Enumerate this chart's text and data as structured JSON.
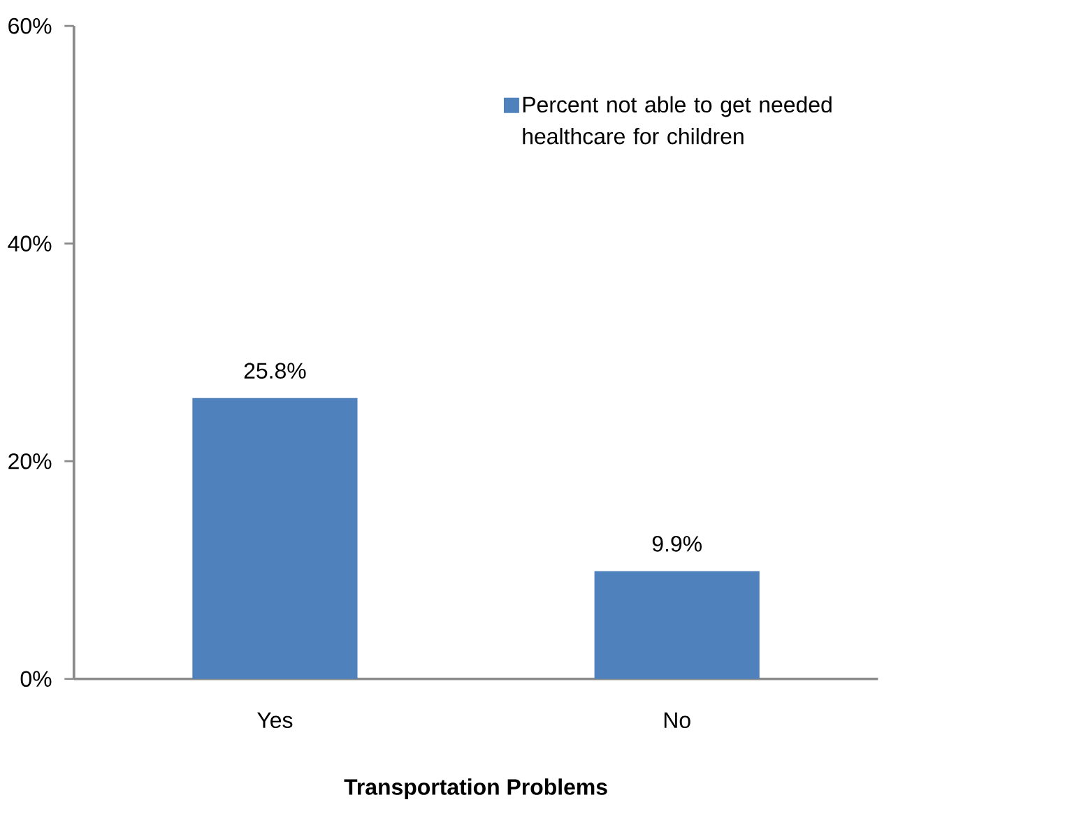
{
  "chart_data": {
    "type": "bar",
    "xlabel": "Transportation Problems",
    "categories": [
      "Yes",
      "No"
    ],
    "series": [
      {
        "name": "Percent not able to get needed healthcare for children",
        "color": "#4f81bd",
        "values": [
          25.8,
          9.9
        ],
        "value_labels": [
          "25.8%",
          "9.9%"
        ]
      }
    ],
    "ylim": [
      0,
      60
    ],
    "yticks": [
      {
        "value": 0,
        "label": "0%"
      },
      {
        "value": 20,
        "label": "20%"
      },
      {
        "value": 40,
        "label": "40%"
      },
      {
        "value": 60,
        "label": "60%"
      }
    ],
    "grid": false,
    "legend": "top right"
  }
}
